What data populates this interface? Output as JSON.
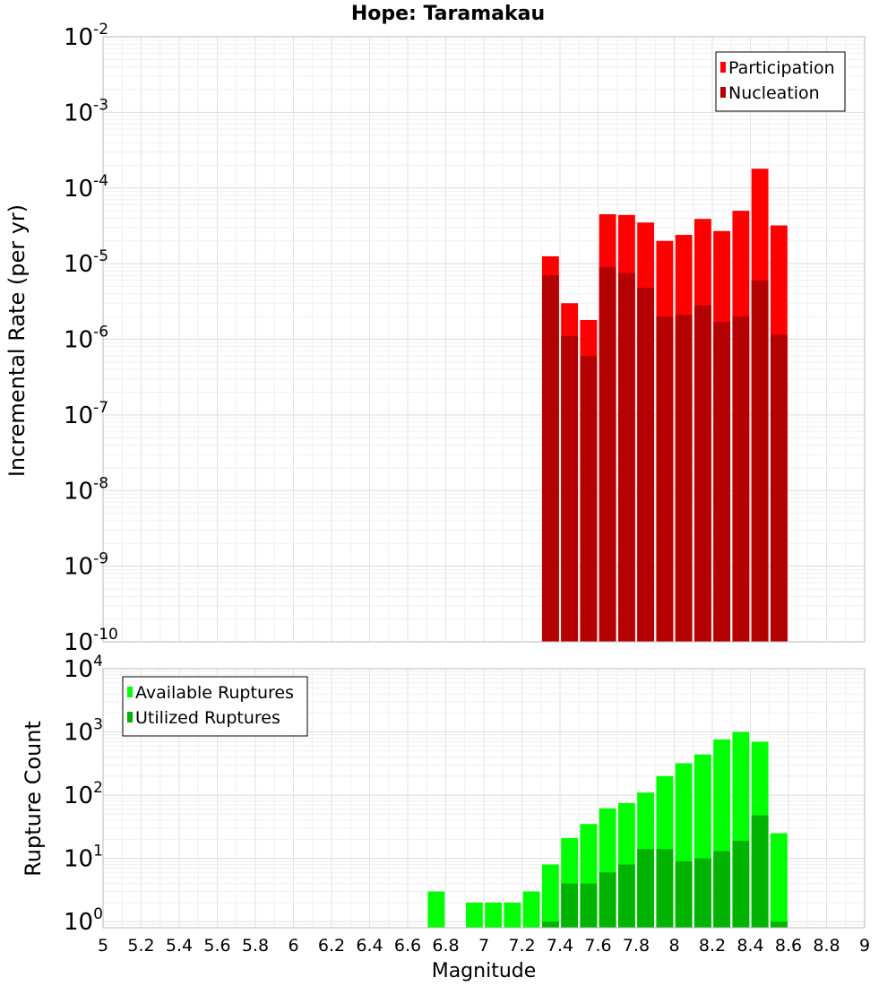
{
  "chart_data": [
    {
      "type": "bar",
      "title": "Hope: Taramakau",
      "ylabel": "Incremental Rate (per yr)",
      "yscale": "log",
      "ylim": [
        1e-10,
        0.01
      ],
      "xlim": [
        5,
        9
      ],
      "bar_width": 0.1,
      "legend_position": "top-right",
      "x": [
        7.35,
        7.45,
        7.55,
        7.65,
        7.75,
        7.85,
        7.95,
        8.05,
        8.15,
        8.25,
        8.35,
        8.45,
        8.55
      ],
      "series": [
        {
          "name": "Participation",
          "color": "#ff0000",
          "values": [
            1.25e-05,
            3e-06,
            1.8e-06,
            4.5e-05,
            4.4e-05,
            3.5e-05,
            2e-05,
            2.4e-05,
            3.9e-05,
            2.7e-05,
            5e-05,
            0.00018,
            3.2e-05
          ]
        },
        {
          "name": "Nucleation",
          "color": "#b30000",
          "values": [
            7e-06,
            1.1e-06,
            6e-07,
            9e-06,
            7.5e-06,
            4.8e-06,
            2e-06,
            2.1e-06,
            2.8e-06,
            1.7e-06,
            2e-06,
            6e-06,
            1.15e-06
          ]
        }
      ],
      "ytick_labels": [
        {
          "base": "10",
          "exp": "-10"
        },
        {
          "base": "10",
          "exp": "-9"
        },
        {
          "base": "10",
          "exp": "-8"
        },
        {
          "base": "10",
          "exp": "-7"
        },
        {
          "base": "10",
          "exp": "-6"
        },
        {
          "base": "10",
          "exp": "-5"
        },
        {
          "base": "10",
          "exp": "-4"
        },
        {
          "base": "10",
          "exp": "-3"
        },
        {
          "base": "10",
          "exp": "-2"
        }
      ]
    },
    {
      "type": "bar",
      "ylabel": "Rupture Count",
      "xlabel": "Magnitude",
      "yscale": "log",
      "ylim": [
        0.8,
        10000.0
      ],
      "xlim": [
        5,
        9
      ],
      "bar_width": 0.1,
      "legend_position": "top-left",
      "x": [
        6.75,
        6.95,
        7.05,
        7.15,
        7.25,
        7.35,
        7.45,
        7.55,
        7.65,
        7.75,
        7.85,
        7.95,
        8.05,
        8.15,
        8.25,
        8.35,
        8.45,
        8.55
      ],
      "series": [
        {
          "name": "Available Ruptures",
          "color": "#00ff00",
          "values": [
            3,
            2,
            2,
            2,
            3,
            8,
            21,
            35,
            62,
            75,
            110,
            200,
            320,
            440,
            760,
            1000,
            700,
            25
          ]
        },
        {
          "name": "Utilized Ruptures",
          "color": "#00b300",
          "values": [
            0,
            0,
            0,
            0,
            0,
            1,
            4,
            4,
            6,
            8,
            14,
            14,
            9,
            10,
            13,
            19,
            48,
            1
          ]
        }
      ],
      "ytick_labels": [
        {
          "base": "10",
          "exp": "0"
        },
        {
          "base": "10",
          "exp": "1"
        },
        {
          "base": "10",
          "exp": "2"
        },
        {
          "base": "10",
          "exp": "3"
        },
        {
          "base": "10",
          "exp": "4"
        }
      ],
      "xtick_labels": [
        "5",
        "5.2",
        "5.4",
        "5.6",
        "5.8",
        "6",
        "6.2",
        "6.4",
        "6.6",
        "6.8",
        "7",
        "7.2",
        "7.4",
        "7.6",
        "7.8",
        "8",
        "8.2",
        "8.4",
        "8.6",
        "8.8",
        "9"
      ]
    }
  ]
}
